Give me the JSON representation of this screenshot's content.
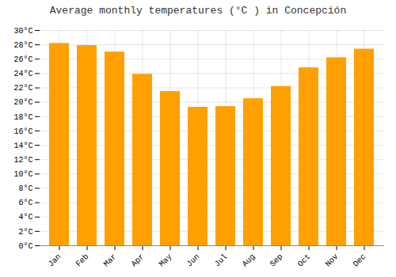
{
  "chart_data": {
    "type": "bar",
    "title": "Average monthly temperatures (°C ) in Concepción",
    "categories": [
      "Jan",
      "Feb",
      "Mar",
      "Apr",
      "May",
      "Jun",
      "Jul",
      "Aug",
      "Sep",
      "Oct",
      "Nov",
      "Dec"
    ],
    "values": [
      28.2,
      27.9,
      27.0,
      23.9,
      21.5,
      19.3,
      19.4,
      20.5,
      22.2,
      24.8,
      26.2,
      27.4
    ],
    "color": "#FFA000",
    "ylim": [
      0,
      30
    ],
    "yticks": [
      {
        "value": 0,
        "label": "0°C"
      },
      {
        "value": 2,
        "label": "2°C"
      },
      {
        "value": 4,
        "label": "4°C"
      },
      {
        "value": 6,
        "label": "6°C"
      },
      {
        "value": 8,
        "label": "8°C"
      },
      {
        "value": 10,
        "label": "10°C"
      },
      {
        "value": 12,
        "label": "12°C"
      },
      {
        "value": 14,
        "label": "14°C"
      },
      {
        "value": 16,
        "label": "16°C"
      },
      {
        "value": 18,
        "label": "18°C"
      },
      {
        "value": 20,
        "label": "20°C"
      },
      {
        "value": 22,
        "label": "22°C"
      },
      {
        "value": 24,
        "label": "24°C"
      },
      {
        "value": 26,
        "label": "26°C"
      },
      {
        "value": 28,
        "label": "28°C"
      },
      {
        "value": 30,
        "label": "30°C"
      }
    ],
    "grid": true
  }
}
